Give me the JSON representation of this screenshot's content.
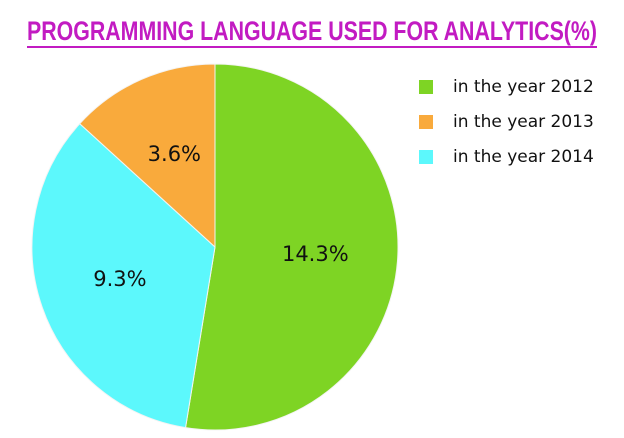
{
  "chart_data": {
    "type": "pie",
    "title": "PROGRAMMING LANGUAGE USED FOR ANALYTICS(%)",
    "categories": [
      "in the year 2012",
      "in the year 2013",
      "in the year 2014"
    ],
    "values": [
      14.3,
      3.6,
      9.3
    ],
    "value_labels": [
      "14.3%",
      "3.6%",
      "9.3%"
    ],
    "colors": [
      "#7ed424",
      "#f9aa3c",
      "#5cf8fc"
    ],
    "slice_order": [
      0,
      2,
      1
    ],
    "legend": "top-right"
  }
}
